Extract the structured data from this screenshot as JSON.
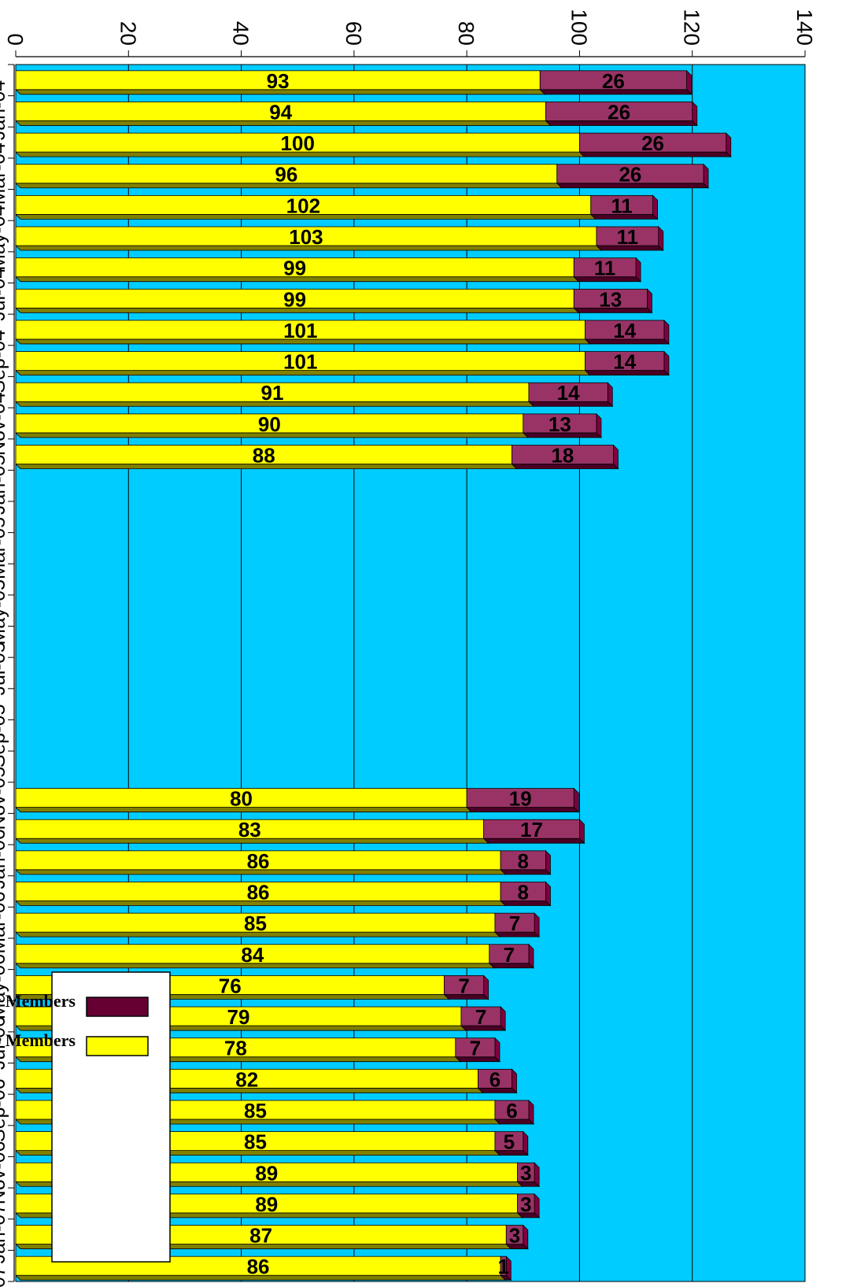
{
  "chart_data": {
    "type": "bar",
    "stacked": true,
    "orientation": "horizontal-rotated",
    "categories": [
      "Jan-04",
      "Feb-04",
      "Mar-04",
      "Apr-04",
      "May-04",
      "Jun-04",
      "Jul-04",
      "Aug-04",
      "Sep-04",
      "Oct-04",
      "Nov-04",
      "Dec-04",
      "Jan-05",
      "Feb-05",
      "Mar-05",
      "Apr-05",
      "May-05",
      "Jun-05",
      "Jul-05",
      "Aug-05",
      "Sep-05",
      "Oct-05",
      "Nov-05",
      "Dec-05",
      "Jan-06",
      "Feb-06",
      "Mar-06",
      "Apr-06",
      "May-06",
      "Jun-06",
      "Jul-06",
      "Aug-06",
      "Sep-06",
      "Oct-06",
      "Nov-06",
      "Dec-06",
      "Jan-07",
      "Feb-07",
      "Mar-07"
    ],
    "tick_labels": [
      "Jan-04",
      "Mar-04",
      "May-04",
      "Jul-04",
      "Sep-04",
      "Nov-04",
      "Jan-05",
      "Mar-05",
      "May-05",
      "Jul-05",
      "Sep-05",
      "Nov-05",
      "Jan-06",
      "Mar-06",
      "May-06",
      "Jul-06",
      "Sep-06",
      "Nov-06",
      "Jan-07",
      "Mar-07"
    ],
    "series": [
      {
        "name": "Regular Members",
        "color": "#FFFF00",
        "values": [
          93,
          94,
          100,
          96,
          102,
          103,
          99,
          99,
          101,
          101,
          91,
          90,
          88,
          null,
          null,
          null,
          null,
          null,
          null,
          null,
          null,
          null,
          null,
          80,
          83,
          86,
          86,
          85,
          84,
          76,
          79,
          78,
          82,
          85,
          85,
          89,
          89,
          87,
          86
        ]
      },
      {
        "name": "Student Members",
        "color": "#660033",
        "values": [
          26,
          26,
          26,
          26,
          11,
          11,
          11,
          13,
          14,
          14,
          14,
          13,
          18,
          null,
          null,
          null,
          null,
          null,
          null,
          null,
          null,
          null,
          null,
          19,
          17,
          8,
          8,
          7,
          7,
          7,
          7,
          7,
          6,
          6,
          5,
          3,
          3,
          3,
          1
        ]
      }
    ],
    "value_axis": {
      "min": 0,
      "max": 140,
      "ticks": [
        0,
        20,
        40,
        60,
        80,
        100,
        120,
        140
      ]
    },
    "grid": true,
    "legend_position": "top-right",
    "plot_background": "#00CCFF"
  }
}
